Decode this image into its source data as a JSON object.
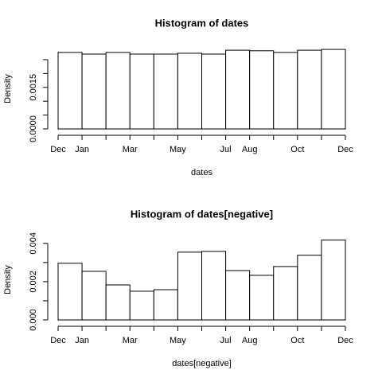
{
  "chart_data": [
    {
      "type": "histogram",
      "title": "Histogram of dates",
      "xlabel": "dates",
      "ylabel": "Density",
      "bins": [
        "Dec",
        "Jan",
        null,
        "Mar",
        null,
        "May",
        null,
        "Jul",
        "Aug",
        null,
        "Oct",
        null,
        "Dec"
      ],
      "values": [
        0.00276,
        0.0027,
        0.00276,
        0.0027,
        0.0027,
        0.00273,
        0.0027,
        0.00284,
        0.00282,
        0.00276,
        0.00284,
        0.00287
      ],
      "ylim": [
        0,
        0.0029
      ],
      "yticks": [
        {
          "value": 0,
          "label": "0.0000"
        },
        {
          "value": 0.0005
        },
        {
          "value": 0.001
        },
        {
          "value": 0.0015,
          "label": "0.0015"
        },
        {
          "value": 0.002
        },
        {
          "value": 0.0025
        }
      ],
      "color": "#ffffff"
    },
    {
      "type": "histogram",
      "title": "Histogram of dates[negative]",
      "xlabel": "dates[negative]",
      "ylabel": "Density",
      "bins": [
        "Dec",
        "Jan",
        null,
        "Mar",
        null,
        "May",
        null,
        "Jul",
        "Aug",
        null,
        "Oct",
        null,
        "Dec"
      ],
      "values": [
        0.00296,
        0.00254,
        0.00183,
        0.0015,
        0.00158,
        0.00354,
        0.00358,
        0.00258,
        0.00233,
        0.00279,
        0.00338,
        0.00417
      ],
      "ylim": [
        0,
        0.0042
      ],
      "yticks": [
        {
          "value": 0,
          "label": "0.000"
        },
        {
          "value": 0.001
        },
        {
          "value": 0.002,
          "label": "0.002"
        },
        {
          "value": 0.003
        },
        {
          "value": 0.004,
          "label": "0.004"
        }
      ],
      "color": "#ffffff"
    }
  ]
}
